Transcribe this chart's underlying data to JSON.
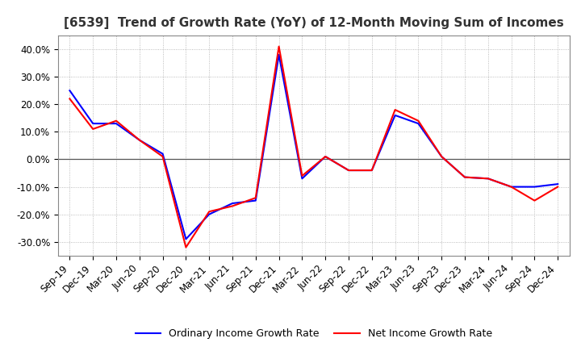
{
  "title": "[6539]  Trend of Growth Rate (YoY) of 12-Month Moving Sum of Incomes",
  "x_labels": [
    "Sep-19",
    "Dec-19",
    "Mar-20",
    "Jun-20",
    "Sep-20",
    "Dec-20",
    "Mar-21",
    "Jun-21",
    "Sep-21",
    "Dec-21",
    "Mar-22",
    "Jun-22",
    "Sep-22",
    "Dec-22",
    "Mar-23",
    "Jun-23",
    "Sep-23",
    "Dec-23",
    "Mar-24",
    "Jun-24",
    "Sep-24",
    "Dec-24"
  ],
  "ordinary_income": [
    0.25,
    0.13,
    0.13,
    0.07,
    0.02,
    -0.29,
    -0.2,
    -0.16,
    -0.15,
    0.38,
    -0.07,
    0.01,
    -0.04,
    -0.04,
    0.16,
    0.13,
    0.01,
    -0.065,
    -0.07,
    -0.1,
    -0.1,
    -0.09
  ],
  "net_income": [
    0.22,
    0.11,
    0.14,
    0.07,
    0.01,
    -0.32,
    -0.19,
    -0.17,
    -0.14,
    0.41,
    -0.06,
    0.01,
    -0.04,
    -0.04,
    0.18,
    0.14,
    0.01,
    -0.065,
    -0.07,
    -0.1,
    -0.15,
    -0.1
  ],
  "ordinary_color": "#0000ff",
  "net_color": "#ff0000",
  "ylim": [
    -0.35,
    0.45
  ],
  "yticks": [
    -0.3,
    -0.2,
    -0.1,
    0.0,
    0.1,
    0.2,
    0.3,
    0.4
  ],
  "background_color": "#ffffff",
  "plot_bg_color": "#ffffff",
  "grid_color": "#aaaaaa",
  "zero_line_color": "#555555",
  "legend_ordinary": "Ordinary Income Growth Rate",
  "legend_net": "Net Income Growth Rate",
  "line_width": 1.5,
  "title_fontsize": 11,
  "tick_fontsize": 8.5,
  "legend_fontsize": 9
}
